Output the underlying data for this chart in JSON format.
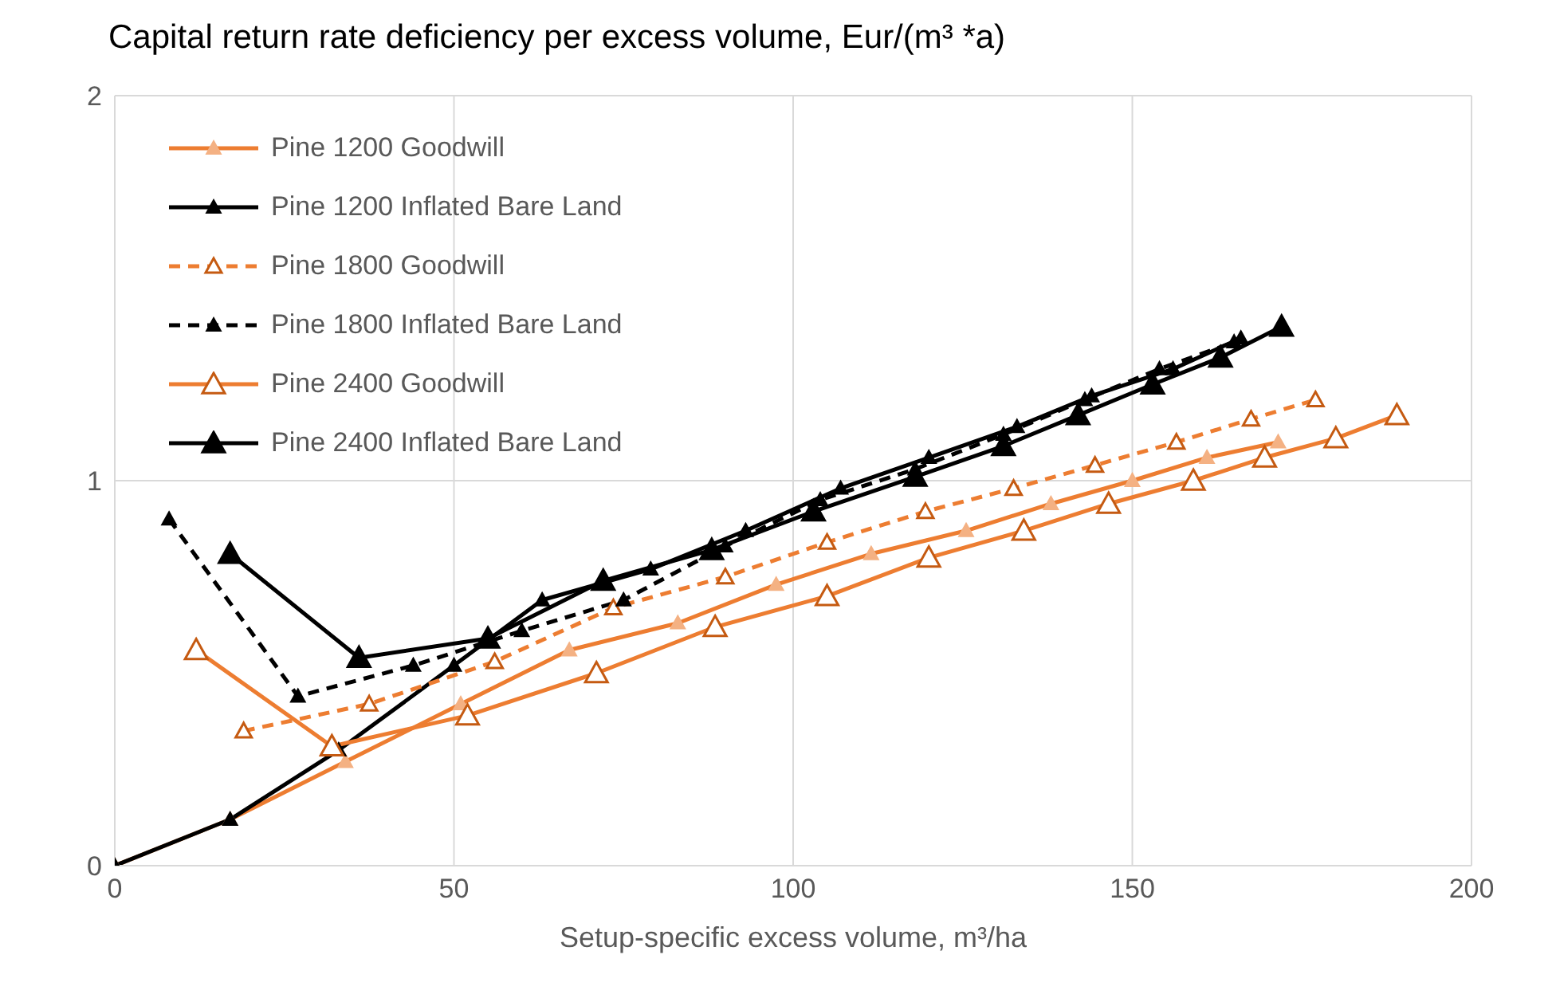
{
  "chart_data": {
    "type": "line",
    "title": "Capital return rate deficiency per excess volume,  Eur/(m³ *a)",
    "xlabel": "Setup-specific excess volume, m³/ha",
    "xlim": [
      0,
      200
    ],
    "xticks": [
      0,
      50,
      100,
      150,
      200
    ],
    "ylim": [
      0,
      2
    ],
    "yticks": [
      0,
      1,
      2
    ],
    "grid": true,
    "legend": "top left",
    "marker": "triangle",
    "series": [
      {
        "name": "Pine 1200 Goodwill",
        "color": "#ed7d31",
        "line_style": "solid",
        "x": [
          0,
          17,
          34,
          51,
          67,
          83,
          97.5,
          111.5,
          125.5,
          138,
          150,
          161,
          171.5
        ],
        "values": [
          0,
          0.12,
          0.27,
          0.42,
          0.56,
          0.63,
          0.73,
          0.81,
          0.87,
          0.94,
          1.0,
          1.06,
          1.1
        ]
      },
      {
        "name": "Pine 1200 Inflated Bare Land",
        "color": "#000000",
        "line_style": "solid",
        "x": [
          0,
          17,
          33,
          50,
          63,
          79,
          93,
          107,
          120,
          133,
          144,
          156,
          166
        ],
        "values": [
          0,
          0.12,
          0.3,
          0.52,
          0.69,
          0.77,
          0.87,
          0.98,
          1.06,
          1.14,
          1.22,
          1.29,
          1.37
        ]
      },
      {
        "name": "Pine 1800 Goodwill",
        "color": "#ed7d31",
        "line_style": "dashed",
        "x": [
          19,
          37.5,
          56,
          73.5,
          90,
          105,
          119.5,
          132.5,
          144.5,
          156.5,
          167.5,
          177
        ],
        "values": [
          0.35,
          0.42,
          0.53,
          0.67,
          0.75,
          0.84,
          0.92,
          0.98,
          1.04,
          1.1,
          1.16,
          1.21
        ]
      },
      {
        "name": "Pine 1800 Inflated Bare Land",
        "color": "#000000",
        "line_style": "dashed",
        "x": [
          8,
          27,
          44,
          60,
          75,
          90,
          104,
          118,
          131,
          143,
          154,
          165
        ],
        "values": [
          0.9,
          0.44,
          0.52,
          0.61,
          0.69,
          0.83,
          0.95,
          1.03,
          1.12,
          1.21,
          1.29,
          1.36
        ]
      },
      {
        "name": "Pine 2400 Goodwill",
        "color": "#ed7d31",
        "line_style": "solid",
        "x": [
          12,
          32,
          52,
          71,
          88.5,
          105,
          120,
          134,
          146.5,
          159,
          169.5,
          180,
          189
        ],
        "values": [
          0.56,
          0.31,
          0.39,
          0.5,
          0.62,
          0.7,
          0.8,
          0.87,
          0.94,
          1.0,
          1.06,
          1.11,
          1.17
        ]
      },
      {
        "name": "Pine 2400 Inflated Bare Land",
        "color": "#000000",
        "line_style": "solid",
        "x": [
          17,
          36,
          55,
          72,
          88,
          103,
          118,
          131,
          142,
          153,
          163,
          172
        ],
        "values": [
          0.81,
          0.54,
          0.59,
          0.74,
          0.82,
          0.92,
          1.01,
          1.09,
          1.17,
          1.25,
          1.32,
          1.4
        ]
      }
    ]
  }
}
